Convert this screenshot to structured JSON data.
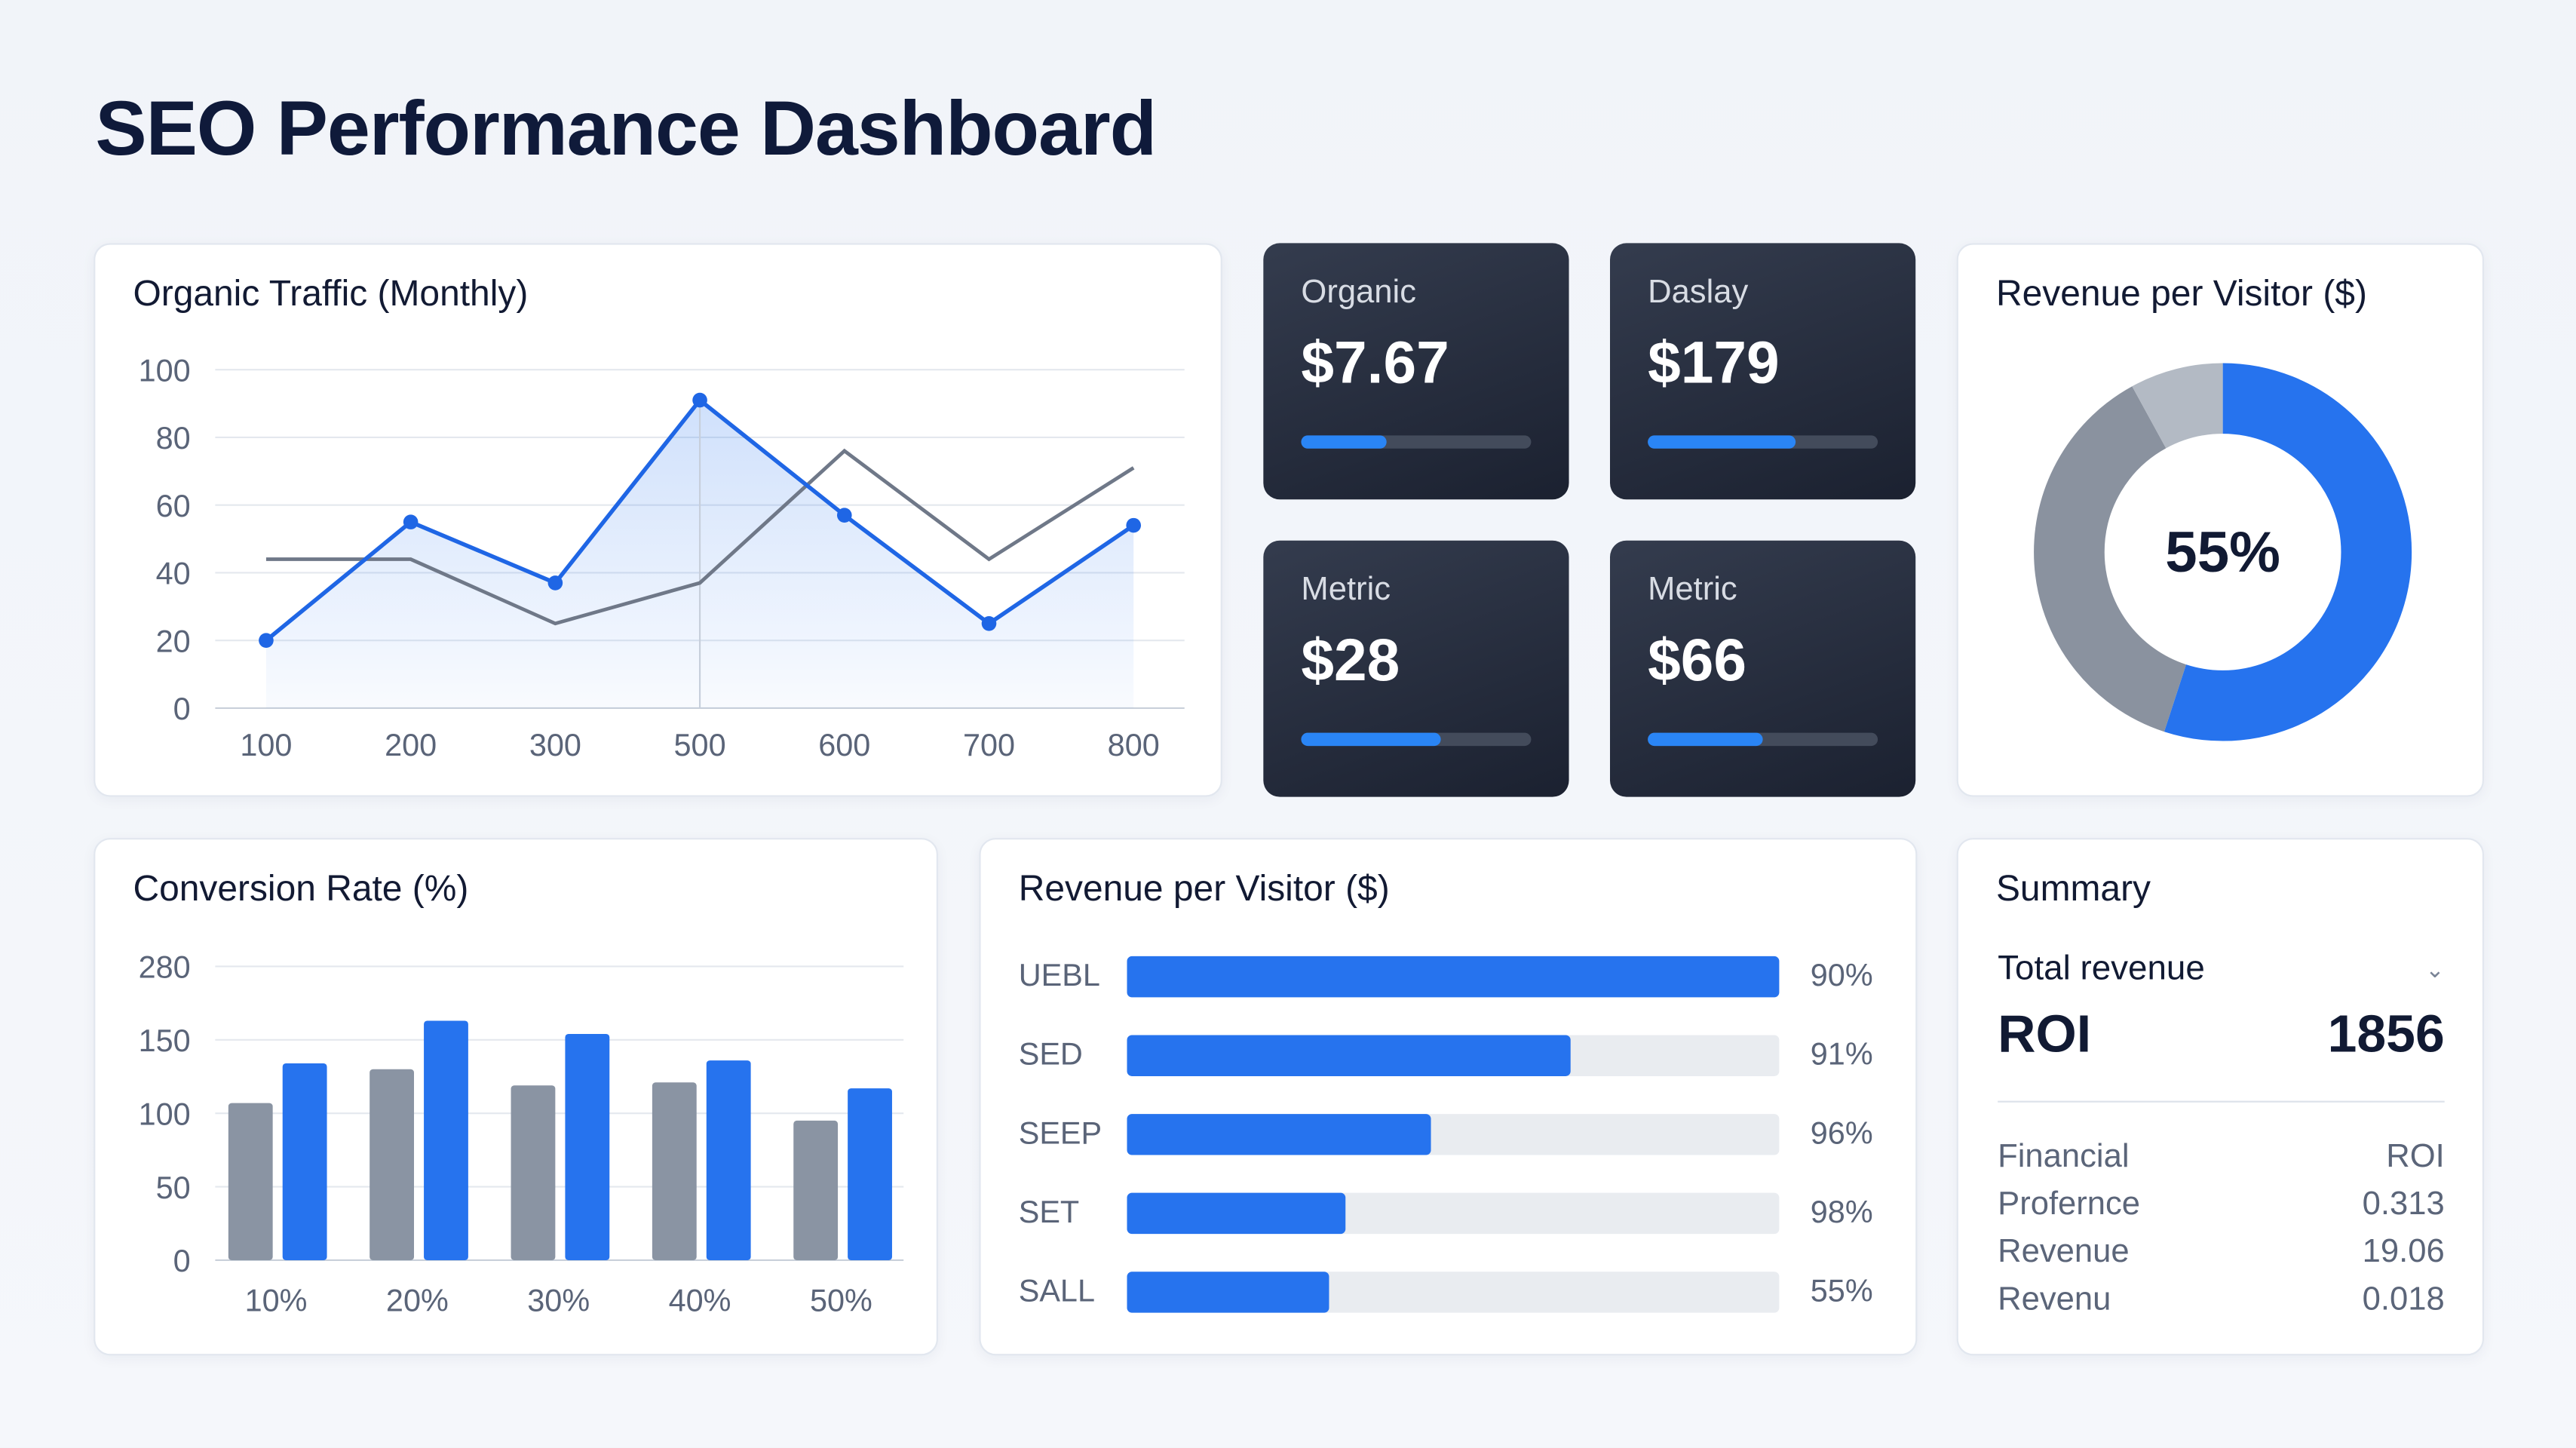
{
  "title": "SEO Performance Dashboard",
  "colors": {
    "accent": "#2673ee",
    "secondary": "#8a94a3",
    "light": "#b0b8c3",
    "kpi_bg": "#262d3c"
  },
  "organic_traffic": {
    "chart_data": {
      "type": "line",
      "title": "Organic Traffic (Monthly)",
      "categories": [
        "100",
        "200",
        "300",
        "500",
        "600",
        "700",
        "800"
      ],
      "yticks": [
        "0",
        "20",
        "40",
        "60",
        "80",
        "100"
      ],
      "ylim": [
        0,
        100
      ],
      "grid": true,
      "series": [
        {
          "values": [
            20,
            55,
            37,
            91,
            57,
            25,
            54
          ],
          "color": "#1f66e5",
          "area": true,
          "markers": true
        },
        {
          "values": [
            44,
            44,
            25,
            37,
            76,
            44,
            71
          ],
          "color": "#6f7888"
        }
      ]
    }
  },
  "kpis": [
    {
      "label": "Organic",
      "value": "$7.67",
      "progress": 0.37
    },
    {
      "label": "Daslay",
      "value": "$179",
      "progress": 0.64
    },
    {
      "label": "Metric",
      "value": "$28",
      "progress": 0.61
    },
    {
      "label": "Metric",
      "value": "$66",
      "progress": 0.5
    }
  ],
  "donut": {
    "chart_data": {
      "type": "pie",
      "title": "Revenue per Visitor ($)",
      "center_label": "55%",
      "values": [
        55,
        37,
        8
      ],
      "colors": [
        "#2673ee",
        "#8a929f",
        "#b3bac4"
      ]
    }
  },
  "conversion": {
    "chart_data": {
      "type": "bar",
      "title": "Conversion Rate (%)",
      "categories": [
        "10%",
        "20%",
        "30%",
        "40%",
        "50%"
      ],
      "yticks": [
        "0",
        "50",
        "100",
        "150",
        "280"
      ],
      "grid": true,
      "series": [
        {
          "values": [
            107,
            130,
            119,
            121,
            95
          ],
          "color": "#8a94a3"
        },
        {
          "values": [
            134,
            163,
            154,
            136,
            117
          ],
          "color": "#2673ee"
        }
      ]
    }
  },
  "revenue_bars": {
    "chart_data": {
      "type": "bar",
      "orientation": "horizontal",
      "title": "Revenue per Visitor ($)",
      "categories": [
        "UEBL",
        "SED",
        "SEEP",
        "SET",
        "SALL"
      ],
      "fill": [
        1.0,
        0.68,
        0.465,
        0.335,
        0.31
      ],
      "labels": [
        "90%",
        "91%",
        "96%",
        "98%",
        "55%"
      ]
    }
  },
  "summary": {
    "title": "Summary",
    "dropdown": "Total revenue",
    "headline_label": "ROI",
    "headline_value": "1856",
    "rows": [
      {
        "k": "Financial",
        "v": "ROI"
      },
      {
        "k": "Profernce",
        "v": "0.313"
      },
      {
        "k": "Revenue",
        "v": "19.06"
      },
      {
        "k": "Revenu",
        "v": "0.018"
      }
    ]
  }
}
